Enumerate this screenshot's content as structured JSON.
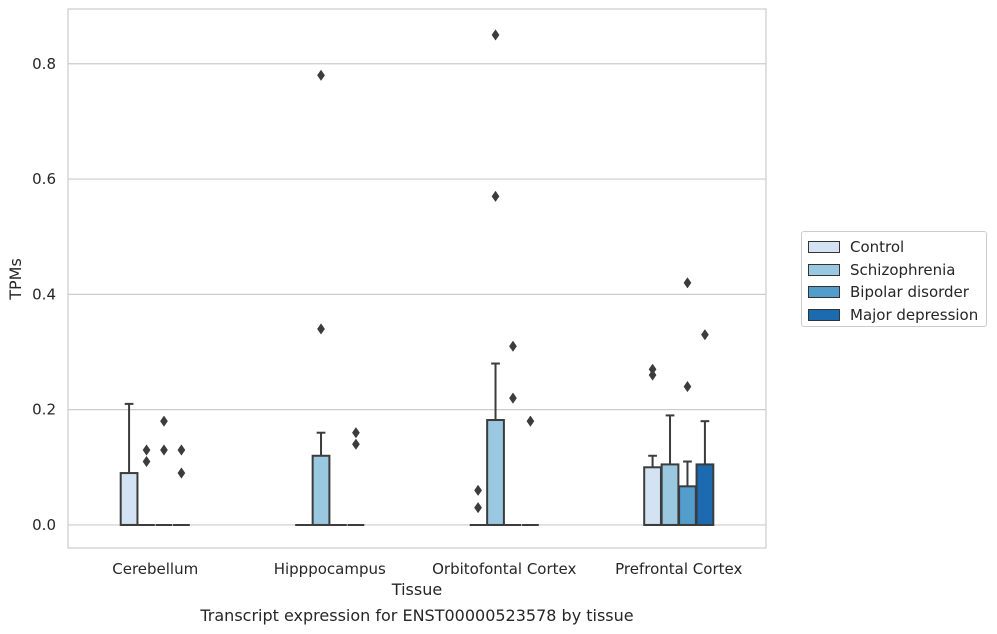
{
  "caption": "Transcript expression for ENST00000523578 by tissue",
  "chart_data": {
    "type": "box",
    "xlabel": "Tissue",
    "ylabel": "TPMs",
    "ylim": [
      -0.04,
      0.895
    ],
    "yticks": [
      "0.0",
      "0.2",
      "0.4",
      "0.6",
      "0.8"
    ],
    "ytick_values": [
      0,
      0.2,
      0.4,
      0.6,
      0.8
    ],
    "grid": "horizontal",
    "legend_position": "right",
    "categories": [
      "Cerebellum",
      "Hipppocampus",
      "Orbitofontal Cortex",
      "Prefrontal Cortex"
    ],
    "series": [
      {
        "name": "Control",
        "color": "#d3e3f3",
        "boxes": [
          {
            "q1": 0,
            "median": 0,
            "q3": 0.09,
            "whisker_low": 0,
            "whisker_high": 0.21,
            "outliers": []
          },
          {
            "q1": 0,
            "median": 0,
            "q3": 0,
            "whisker_low": 0,
            "whisker_high": 0,
            "outliers": []
          },
          {
            "q1": 0,
            "median": 0,
            "q3": 0,
            "whisker_low": 0,
            "whisker_high": 0,
            "outliers": [
              0.03,
              0.06
            ]
          },
          {
            "q1": 0,
            "median": 0,
            "q3": 0.1,
            "whisker_low": 0,
            "whisker_high": 0.12,
            "outliers": [
              0.26,
              0.27
            ]
          }
        ]
      },
      {
        "name": "Schizophrenia",
        "color": "#9ac8e0",
        "boxes": [
          {
            "q1": 0,
            "median": 0,
            "q3": 0,
            "whisker_low": 0,
            "whisker_high": 0,
            "outliers": [
              0.11,
              0.13
            ]
          },
          {
            "q1": 0,
            "median": 0,
            "q3": 0.12,
            "whisker_low": 0,
            "whisker_high": 0.16,
            "outliers": [
              0.34,
              0.78
            ]
          },
          {
            "q1": 0,
            "median": 0,
            "q3": 0.182,
            "whisker_low": 0,
            "whisker_high": 0.28,
            "outliers": [
              0.57,
              0.85
            ]
          },
          {
            "q1": 0,
            "median": 0,
            "q3": 0.105,
            "whisker_low": 0,
            "whisker_high": 0.19,
            "outliers": []
          }
        ]
      },
      {
        "name": "Bipolar disorder",
        "color": "#529dcc",
        "boxes": [
          {
            "q1": 0,
            "median": 0,
            "q3": 0,
            "whisker_low": 0,
            "whisker_high": 0,
            "outliers": [
              0.13,
              0.18
            ]
          },
          {
            "q1": 0,
            "median": 0,
            "q3": 0,
            "whisker_low": 0,
            "whisker_high": 0,
            "outliers": []
          },
          {
            "q1": 0,
            "median": 0,
            "q3": 0,
            "whisker_low": 0,
            "whisker_high": 0,
            "outliers": [
              0.22,
              0.31
            ]
          },
          {
            "q1": 0,
            "median": 0,
            "q3": 0.067,
            "whisker_low": 0,
            "whisker_high": 0.11,
            "outliers": [
              0.24,
              0.42
            ]
          }
        ]
      },
      {
        "name": "Major depression",
        "color": "#1c6aaf",
        "boxes": [
          {
            "q1": 0,
            "median": 0,
            "q3": 0,
            "whisker_low": 0,
            "whisker_high": 0,
            "outliers": [
              0.09,
              0.13
            ]
          },
          {
            "q1": 0,
            "median": 0,
            "q3": 0,
            "whisker_low": 0,
            "whisker_high": 0,
            "outliers": [
              0.14,
              0.16
            ]
          },
          {
            "q1": 0,
            "median": 0,
            "q3": 0,
            "whisker_low": 0,
            "whisker_high": 0,
            "outliers": [
              0.18
            ]
          },
          {
            "q1": 0,
            "median": 0,
            "q3": 0.105,
            "whisker_low": 0,
            "whisker_high": 0.18,
            "outliers": [
              0.33
            ]
          }
        ]
      }
    ]
  }
}
